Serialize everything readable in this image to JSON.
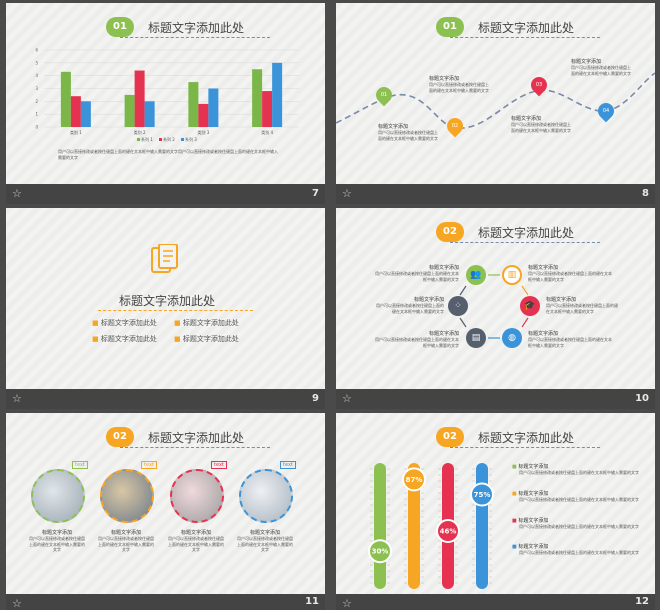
{
  "heading": "标题文字添加此处",
  "item_title": "标题文字添加",
  "body_text": "用户可以直接修改或者按住键盘上面的键在文本框中输入需要的文字",
  "footer_icon": "star-icon",
  "slides": [
    {
      "num": "7",
      "badge": "01",
      "badge_color": "#8cc152",
      "chart_data": {
        "type": "bar",
        "categories": [
          "类别 1",
          "类别 2",
          "类别 3",
          "类别 4"
        ],
        "series": [
          {
            "name": "系列 1",
            "values": [
              4.3,
              2.5,
              3.5,
              4.5
            ],
            "color": "#7ab648"
          },
          {
            "name": "系列 2",
            "values": [
              2.4,
              4.4,
              1.8,
              2.8
            ],
            "color": "#e63251"
          },
          {
            "name": "系列 3",
            "values": [
              2.0,
              2.0,
              3.0,
              5.0
            ],
            "color": "#3b94d9"
          }
        ],
        "ylim": [
          0,
          6
        ],
        "yticks": [
          "0",
          "1",
          "2",
          "3",
          "4",
          "5",
          "6"
        ],
        "legend": "bottom",
        "grid": true
      },
      "caption": "用户可以直接修改或者按住键盘上面的键在文本框中输入需要的文字用户可以直接修改或者按住键盘上面的键在文本框中输入需要的文字"
    },
    {
      "num": "8",
      "badge": "01",
      "badge_color": "#8cc152",
      "pins": [
        {
          "label": "01",
          "color": "#8cc152"
        },
        {
          "label": "02",
          "color": "#f6a623"
        },
        {
          "label": "03",
          "color": "#e63251"
        },
        {
          "label": "04",
          "color": "#3b94d9"
        }
      ]
    },
    {
      "num": "9",
      "title": "标题文字添加此处",
      "items": [
        "标题文字添加此处",
        "标题文字添加此处",
        "标题文字添加此处",
        "标题文字添加此处"
      ],
      "accent": "#f6a623"
    },
    {
      "num": "10",
      "badge": "02",
      "badge_color": "#f6a623",
      "nodes": [
        {
          "color": "#8cc152",
          "icon": "users-icon"
        },
        {
          "color": "#f6a623",
          "icon": "chart-icon"
        },
        {
          "color": "#e63251",
          "icon": "graduation-icon"
        },
        {
          "color": "#3b94d9",
          "icon": "globe-icon"
        },
        {
          "color": "#555f6d",
          "icon": "book-icon"
        },
        {
          "color": "#555f6d",
          "icon": "footprints-icon"
        }
      ]
    },
    {
      "num": "11",
      "badge": "02",
      "badge_color": "#f6a623",
      "photos": [
        {
          "color": "#8cc152",
          "tag": "text"
        },
        {
          "color": "#f6a623",
          "tag": "text"
        },
        {
          "color": "#e63251",
          "tag": "text"
        },
        {
          "color": "#3b94d9",
          "tag": "text"
        }
      ]
    },
    {
      "num": "12",
      "badge": "02",
      "badge_color": "#f6a623",
      "bars": [
        {
          "percent": 30,
          "label": "30%",
          "color": "#8cc152"
        },
        {
          "percent": 87,
          "label": "87%",
          "color": "#f6a623"
        },
        {
          "percent": 46,
          "label": "46%",
          "color": "#e63251"
        },
        {
          "percent": 75,
          "label": "75%",
          "color": "#3b94d9"
        }
      ]
    }
  ]
}
